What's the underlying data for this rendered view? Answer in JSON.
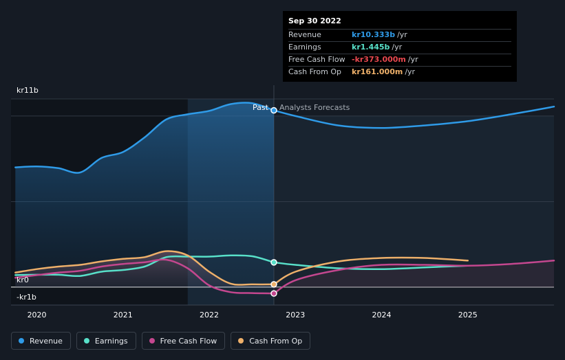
{
  "chart_data": {
    "type": "line",
    "title": "",
    "xlabel": "",
    "ylabel": "",
    "y_axis_labels": [
      "kr11b",
      "kr0",
      "-kr1b"
    ],
    "x_ticks": [
      2020,
      2021,
      2022,
      2023,
      2024,
      2025
    ],
    "x_tick_labels": [
      "2020",
      "2021",
      "2022",
      "2023",
      "2024",
      "2025"
    ],
    "xlim": [
      2019.7,
      2026.0
    ],
    "ylim": [
      -1.05,
      11.0
    ],
    "unit": "kr billions",
    "past_label": "Past",
    "forecast_label": "Analysts Forecasts",
    "past_end": 2022.75,
    "highlight_start": 2021.75,
    "series": [
      {
        "name": "Revenue",
        "color": "#2f9be8",
        "past": [
          [
            2019.75,
            7.0
          ],
          [
            2020.0,
            7.05
          ],
          [
            2020.25,
            6.95
          ],
          [
            2020.5,
            6.7
          ],
          [
            2020.75,
            7.55
          ],
          [
            2021.0,
            7.9
          ],
          [
            2021.25,
            8.75
          ],
          [
            2021.5,
            9.8
          ],
          [
            2021.75,
            10.1
          ],
          [
            2022.0,
            10.3
          ],
          [
            2022.25,
            10.7
          ],
          [
            2022.5,
            10.75
          ],
          [
            2022.75,
            10.33
          ]
        ],
        "forecast": [
          [
            2022.75,
            10.33
          ],
          [
            2023.0,
            10.0
          ],
          [
            2023.5,
            9.45
          ],
          [
            2024.0,
            9.3
          ],
          [
            2024.5,
            9.45
          ],
          [
            2025.0,
            9.7
          ],
          [
            2025.5,
            10.1
          ],
          [
            2026.0,
            10.55
          ]
        ]
      },
      {
        "name": "Earnings",
        "color": "#58e0c9",
        "past": [
          [
            2019.75,
            0.7
          ],
          [
            2020.0,
            0.72
          ],
          [
            2020.25,
            0.72
          ],
          [
            2020.5,
            0.65
          ],
          [
            2020.75,
            0.9
          ],
          [
            2021.0,
            1.0
          ],
          [
            2021.25,
            1.2
          ],
          [
            2021.5,
            1.75
          ],
          [
            2021.75,
            1.78
          ],
          [
            2022.0,
            1.78
          ],
          [
            2022.25,
            1.85
          ],
          [
            2022.5,
            1.8
          ],
          [
            2022.75,
            1.445
          ]
        ],
        "forecast": [
          [
            2022.75,
            1.445
          ],
          [
            2023.0,
            1.3
          ],
          [
            2023.5,
            1.1
          ],
          [
            2024.0,
            1.05
          ],
          [
            2024.5,
            1.15
          ],
          [
            2025.0,
            1.25
          ]
        ]
      },
      {
        "name": "Free Cash Flow",
        "color": "#c4478f",
        "past": [
          [
            2019.75,
            0.55
          ],
          [
            2020.0,
            0.7
          ],
          [
            2020.25,
            0.85
          ],
          [
            2020.5,
            0.95
          ],
          [
            2020.75,
            1.2
          ],
          [
            2021.0,
            1.35
          ],
          [
            2021.25,
            1.45
          ],
          [
            2021.5,
            1.6
          ],
          [
            2021.75,
            1.1
          ],
          [
            2022.0,
            0.1
          ],
          [
            2022.25,
            -0.3
          ],
          [
            2022.5,
            -0.35
          ],
          [
            2022.75,
            -0.373
          ]
        ],
        "forecast": [
          [
            2022.75,
            -0.373
          ],
          [
            2023.0,
            0.4
          ],
          [
            2023.5,
            1.0
          ],
          [
            2024.0,
            1.3
          ],
          [
            2024.5,
            1.3
          ],
          [
            2025.0,
            1.25
          ],
          [
            2025.5,
            1.35
          ],
          [
            2026.0,
            1.55
          ]
        ]
      },
      {
        "name": "Cash From Op",
        "color": "#eeb06a",
        "past": [
          [
            2019.75,
            0.85
          ],
          [
            2020.0,
            1.05
          ],
          [
            2020.25,
            1.2
          ],
          [
            2020.5,
            1.3
          ],
          [
            2020.75,
            1.5
          ],
          [
            2021.0,
            1.65
          ],
          [
            2021.25,
            1.75
          ],
          [
            2021.5,
            2.1
          ],
          [
            2021.75,
            1.85
          ],
          [
            2022.0,
            0.9
          ],
          [
            2022.25,
            0.2
          ],
          [
            2022.5,
            0.16
          ],
          [
            2022.75,
            0.161
          ]
        ],
        "forecast": [
          [
            2022.75,
            0.161
          ],
          [
            2023.0,
            0.9
          ],
          [
            2023.5,
            1.5
          ],
          [
            2024.0,
            1.7
          ],
          [
            2024.5,
            1.7
          ],
          [
            2025.0,
            1.55
          ]
        ]
      }
    ],
    "markers": [
      {
        "series": "Revenue",
        "x": 2022.75,
        "y": 10.333
      },
      {
        "series": "Earnings",
        "x": 2022.75,
        "y": 1.445
      },
      {
        "series": "Free Cash Flow",
        "x": 2022.75,
        "y": -0.373
      },
      {
        "series": "Cash From Op",
        "x": 2022.75,
        "y": 0.161
      }
    ]
  },
  "tooltip": {
    "date": "Sep 30 2022",
    "rows": [
      {
        "name": "Revenue",
        "value": "kr10.333b",
        "unit": "/yr",
        "color": "#2f9be8"
      },
      {
        "name": "Earnings",
        "value": "kr1.445b",
        "unit": "/yr",
        "color": "#58e0c9"
      },
      {
        "name": "Free Cash Flow",
        "value": "-kr373.000m",
        "unit": "/yr",
        "color": "#e8484f"
      },
      {
        "name": "Cash From Op",
        "value": "kr161.000m",
        "unit": "/yr",
        "color": "#eeb06a"
      }
    ]
  },
  "legend": [
    {
      "label": "Revenue",
      "color": "#2f9be8"
    },
    {
      "label": "Earnings",
      "color": "#58e0c9"
    },
    {
      "label": "Free Cash Flow",
      "color": "#c4478f"
    },
    {
      "label": "Cash From Op",
      "color": "#eeb06a"
    }
  ]
}
